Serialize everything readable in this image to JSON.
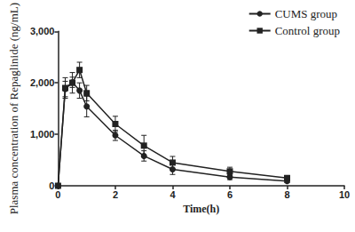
{
  "chart_data": {
    "type": "line",
    "x_label": "Time(h)",
    "y_label": "Plasma concentration of Repaglinide (ng/mL)",
    "xlim": [
      0,
      10
    ],
    "xticks": [
      0,
      2,
      4,
      6,
      8,
      10
    ],
    "ylim": [
      0,
      3000
    ],
    "yticks": [
      0,
      1000,
      2000,
      3000
    ],
    "grid": false,
    "legend": "top-right",
    "series": [
      {
        "name": "CUMS group",
        "color": "#222222",
        "marker": "circle",
        "line_style": "solid",
        "x": [
          0,
          0.25,
          0.5,
          0.75,
          1,
          2,
          3,
          4,
          6,
          8
        ],
        "values": [
          0,
          1880,
          2010,
          1850,
          1540,
          980,
          580,
          320,
          170,
          90
        ],
        "errors": [
          0,
          150,
          100,
          150,
          200,
          100,
          100,
          100,
          50,
          30
        ]
      },
      {
        "name": "Control group",
        "color": "#222222",
        "marker": "square",
        "line_style": "solid",
        "x": [
          0,
          0.25,
          0.5,
          0.75,
          1,
          2,
          3,
          4,
          6,
          8
        ],
        "values": [
          0,
          1900,
          2000,
          2250,
          1800,
          1200,
          780,
          450,
          280,
          150
        ],
        "errors": [
          0,
          200,
          200,
          150,
          150,
          150,
          200,
          120,
          80,
          50
        ]
      }
    ]
  }
}
